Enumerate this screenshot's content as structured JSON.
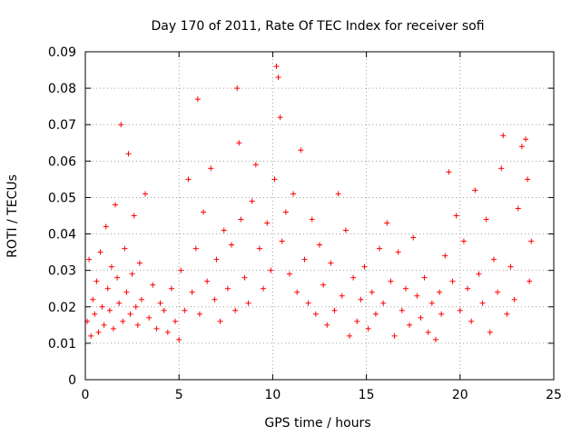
{
  "chart_data": {
    "type": "scatter",
    "title": "Day 170 of 2011, Rate Of TEC Index for receiver sofi",
    "xlabel": "GPS time / hours",
    "ylabel": "ROTI / TECUs",
    "xlim": [
      0,
      25
    ],
    "ylim": [
      0,
      0.09
    ],
    "x_ticks": [
      "0",
      "5",
      "10",
      "15",
      "20",
      "25"
    ],
    "y_ticks": [
      "0",
      "0.01",
      "0.02",
      "0.03",
      "0.04",
      "0.05",
      "0.06",
      "0.07",
      "0.08",
      "0.09"
    ],
    "grid": true,
    "marker": "+",
    "color": "#ff0000",
    "series": [
      {
        "points": [
          [
            0.1,
            0.016
          ],
          [
            0.2,
            0.033
          ],
          [
            0.3,
            0.012
          ],
          [
            0.4,
            0.022
          ],
          [
            0.5,
            0.018
          ],
          [
            0.6,
            0.027
          ],
          [
            0.7,
            0.013
          ],
          [
            0.8,
            0.035
          ],
          [
            0.9,
            0.02
          ],
          [
            1.0,
            0.015
          ],
          [
            1.1,
            0.042
          ],
          [
            1.2,
            0.025
          ],
          [
            1.3,
            0.019
          ],
          [
            1.4,
            0.031
          ],
          [
            1.5,
            0.014
          ],
          [
            1.6,
            0.048
          ],
          [
            1.7,
            0.028
          ],
          [
            1.8,
            0.021
          ],
          [
            1.9,
            0.07
          ],
          [
            2.0,
            0.016
          ],
          [
            2.1,
            0.036
          ],
          [
            2.2,
            0.024
          ],
          [
            2.3,
            0.062
          ],
          [
            2.4,
            0.018
          ],
          [
            2.5,
            0.029
          ],
          [
            2.6,
            0.045
          ],
          [
            2.7,
            0.02
          ],
          [
            2.8,
            0.015
          ],
          [
            2.9,
            0.032
          ],
          [
            3.0,
            0.022
          ],
          [
            3.2,
            0.051
          ],
          [
            3.4,
            0.017
          ],
          [
            3.6,
            0.026
          ],
          [
            3.8,
            0.014
          ],
          [
            4.0,
            0.021
          ],
          [
            4.2,
            0.019
          ],
          [
            4.4,
            0.013
          ],
          [
            4.6,
            0.025
          ],
          [
            4.8,
            0.016
          ],
          [
            5.0,
            0.011
          ],
          [
            5.1,
            0.03
          ],
          [
            5.3,
            0.019
          ],
          [
            5.5,
            0.055
          ],
          [
            5.7,
            0.024
          ],
          [
            5.9,
            0.036
          ],
          [
            6.0,
            0.077
          ],
          [
            6.1,
            0.018
          ],
          [
            6.3,
            0.046
          ],
          [
            6.5,
            0.027
          ],
          [
            6.7,
            0.058
          ],
          [
            6.9,
            0.022
          ],
          [
            7.0,
            0.033
          ],
          [
            7.2,
            0.016
          ],
          [
            7.4,
            0.041
          ],
          [
            7.6,
            0.025
          ],
          [
            7.8,
            0.037
          ],
          [
            8.0,
            0.019
          ],
          [
            8.1,
            0.08
          ],
          [
            8.2,
            0.065
          ],
          [
            8.3,
            0.044
          ],
          [
            8.5,
            0.028
          ],
          [
            8.7,
            0.021
          ],
          [
            8.9,
            0.049
          ],
          [
            9.1,
            0.059
          ],
          [
            9.3,
            0.036
          ],
          [
            9.5,
            0.025
          ],
          [
            9.7,
            0.043
          ],
          [
            9.9,
            0.03
          ],
          [
            10.1,
            0.055
          ],
          [
            10.2,
            0.086
          ],
          [
            10.3,
            0.083
          ],
          [
            10.4,
            0.072
          ],
          [
            10.5,
            0.038
          ],
          [
            10.7,
            0.046
          ],
          [
            10.9,
            0.029
          ],
          [
            11.1,
            0.051
          ],
          [
            11.3,
            0.024
          ],
          [
            11.5,
            0.063
          ],
          [
            11.7,
            0.033
          ],
          [
            11.9,
            0.021
          ],
          [
            12.1,
            0.044
          ],
          [
            12.3,
            0.018
          ],
          [
            12.5,
            0.037
          ],
          [
            12.7,
            0.026
          ],
          [
            12.9,
            0.015
          ],
          [
            13.1,
            0.032
          ],
          [
            13.3,
            0.019
          ],
          [
            13.5,
            0.051
          ],
          [
            13.7,
            0.023
          ],
          [
            13.9,
            0.041
          ],
          [
            14.1,
            0.012
          ],
          [
            14.3,
            0.028
          ],
          [
            14.5,
            0.016
          ],
          [
            14.7,
            0.022
          ],
          [
            14.9,
            0.031
          ],
          [
            15.1,
            0.014
          ],
          [
            15.3,
            0.024
          ],
          [
            15.5,
            0.018
          ],
          [
            15.7,
            0.036
          ],
          [
            15.9,
            0.021
          ],
          [
            16.1,
            0.043
          ],
          [
            16.3,
            0.027
          ],
          [
            16.5,
            0.012
          ],
          [
            16.7,
            0.035
          ],
          [
            16.9,
            0.019
          ],
          [
            17.1,
            0.025
          ],
          [
            17.3,
            0.015
          ],
          [
            17.5,
            0.039
          ],
          [
            17.7,
            0.023
          ],
          [
            17.9,
            0.017
          ],
          [
            18.1,
            0.028
          ],
          [
            18.3,
            0.013
          ],
          [
            18.5,
            0.021
          ],
          [
            18.7,
            0.011
          ],
          [
            18.9,
            0.024
          ],
          [
            19.0,
            0.018
          ],
          [
            19.2,
            0.034
          ],
          [
            19.4,
            0.057
          ],
          [
            19.6,
            0.027
          ],
          [
            19.8,
            0.045
          ],
          [
            20.0,
            0.019
          ],
          [
            20.2,
            0.038
          ],
          [
            20.4,
            0.025
          ],
          [
            20.6,
            0.016
          ],
          [
            20.8,
            0.052
          ],
          [
            21.0,
            0.029
          ],
          [
            21.2,
            0.021
          ],
          [
            21.4,
            0.044
          ],
          [
            21.6,
            0.013
          ],
          [
            21.8,
            0.033
          ],
          [
            22.0,
            0.024
          ],
          [
            22.2,
            0.058
          ],
          [
            22.3,
            0.067
          ],
          [
            22.5,
            0.018
          ],
          [
            22.7,
            0.031
          ],
          [
            22.9,
            0.022
          ],
          [
            23.1,
            0.047
          ],
          [
            23.3,
            0.064
          ],
          [
            23.5,
            0.066
          ],
          [
            23.6,
            0.055
          ],
          [
            23.7,
            0.027
          ],
          [
            23.8,
            0.038
          ]
        ]
      }
    ]
  }
}
